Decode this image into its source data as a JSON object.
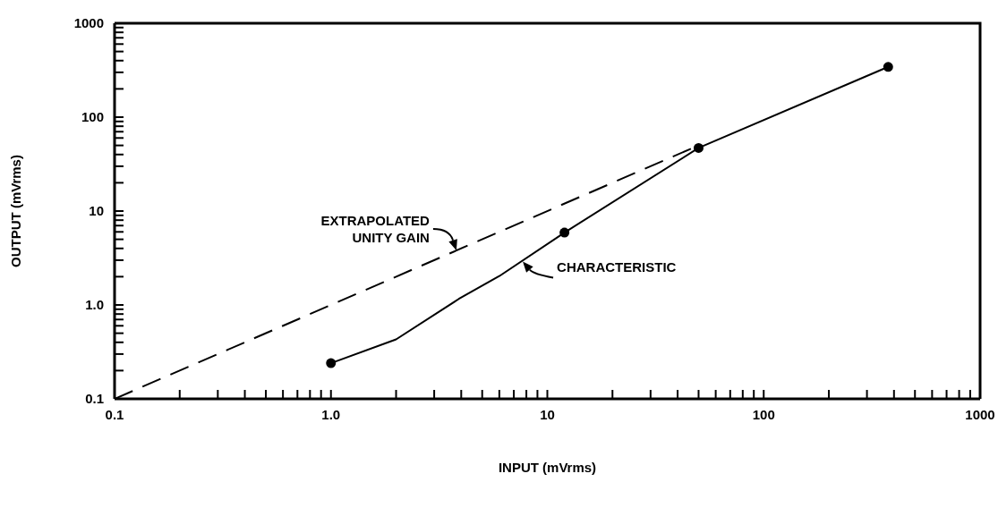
{
  "chart_data": {
    "type": "line",
    "xlabel": "INPUT (mVrms)",
    "ylabel": "OUTPUT (mVrms)",
    "log": "xy",
    "xlim": [
      0.1,
      1000
    ],
    "ylim": [
      0.1,
      1000
    ],
    "xticks": [
      0.1,
      {
        "value": 0.2,
        "label": null
      },
      {
        "value": 0.3,
        "label": null
      },
      {
        "value": 0.4,
        "label": null
      },
      {
        "value": 0.5,
        "label": null
      },
      {
        "value": 0.6,
        "label": null
      },
      {
        "value": 0.7,
        "label": null
      },
      {
        "value": 0.8,
        "label": null
      },
      {
        "value": 0.9,
        "label": null
      },
      {
        "value": 1,
        "label": "1.0"
      },
      {
        "value": 2,
        "label": null
      },
      {
        "value": 3,
        "label": null
      },
      {
        "value": 4,
        "label": null
      },
      {
        "value": 5,
        "label": null
      },
      {
        "value": 6,
        "label": null
      },
      {
        "value": 7,
        "label": null
      },
      {
        "value": 8,
        "label": null
      },
      {
        "value": 9,
        "label": null
      },
      10,
      {
        "value": 20,
        "label": null
      },
      {
        "value": 30,
        "label": null
      },
      {
        "value": 40,
        "label": null
      },
      {
        "value": 50,
        "label": null
      },
      {
        "value": 60,
        "label": null
      },
      {
        "value": 70,
        "label": null
      },
      {
        "value": 80,
        "label": null
      },
      {
        "value": 90,
        "label": null
      },
      100,
      {
        "value": 200,
        "label": null
      },
      {
        "value": 300,
        "label": null
      },
      {
        "value": 400,
        "label": null
      },
      {
        "value": 500,
        "label": null
      },
      {
        "value": 600,
        "label": null
      },
      {
        "value": 700,
        "label": null
      },
      {
        "value": 800,
        "label": null
      },
      {
        "value": 900,
        "label": null
      },
      1000
    ],
    "yticks": [
      0.1,
      {
        "value": 0.2,
        "label": null
      },
      {
        "value": 0.3,
        "label": null
      },
      {
        "value": 0.4,
        "label": null
      },
      {
        "value": 0.5,
        "label": null
      },
      {
        "value": 0.6,
        "label": null
      },
      {
        "value": 0.7,
        "label": null
      },
      {
        "value": 0.8,
        "label": null
      },
      {
        "value": 0.9,
        "label": null
      },
      {
        "value": 1,
        "label": "1.0"
      },
      {
        "value": 2,
        "label": null
      },
      {
        "value": 3,
        "label": null
      },
      {
        "value": 4,
        "label": null
      },
      {
        "value": 5,
        "label": null
      },
      {
        "value": 6,
        "label": null
      },
      {
        "value": 7,
        "label": null
      },
      {
        "value": 8,
        "label": null
      },
      {
        "value": 9,
        "label": null
      },
      10,
      {
        "value": 20,
        "label": null
      },
      {
        "value": 30,
        "label": null
      },
      {
        "value": 40,
        "label": null
      },
      {
        "value": 50,
        "label": null
      },
      {
        "value": 60,
        "label": null
      },
      {
        "value": 70,
        "label": null
      },
      {
        "value": 80,
        "label": null
      },
      {
        "value": 90,
        "label": null
      },
      100,
      {
        "value": 200,
        "label": null
      },
      {
        "value": 300,
        "label": null
      },
      {
        "value": 400,
        "label": null
      },
      {
        "value": 500,
        "label": null
      },
      {
        "value": 600,
        "label": null
      },
      {
        "value": 700,
        "label": null
      },
      {
        "value": 800,
        "label": null
      },
      {
        "value": 900,
        "label": null
      },
      1000
    ],
    "grid": false,
    "legend": false,
    "series": [
      {
        "color": "#000000",
        "x": [
          0.1,
          50
        ],
        "values": [
          0.1,
          50
        ],
        "line_style": "dashed",
        "marker": "none"
      },
      {
        "color": "#000000",
        "x": [
          1,
          2,
          3.9,
          6,
          12,
          50,
          376
        ],
        "values": [
          0.24,
          0.43,
          1.16,
          2.03,
          5.9,
          47,
          343
        ],
        "line_style": "solid",
        "marker": "none"
      },
      {
        "type": "scatter",
        "color": "#000000",
        "x": [
          1,
          12,
          50,
          376
        ],
        "values": [
          0.24,
          5.9,
          47,
          343
        ],
        "marker": "circle"
      }
    ],
    "annotations": [
      {
        "text": "EXTRAPOLATED\nUNITY GAIN",
        "x": 3.8,
        "y": 3.8
      },
      {
        "text": "CHARACTERISTIC",
        "x": 7.7,
        "y": 2.9
      }
    ]
  }
}
